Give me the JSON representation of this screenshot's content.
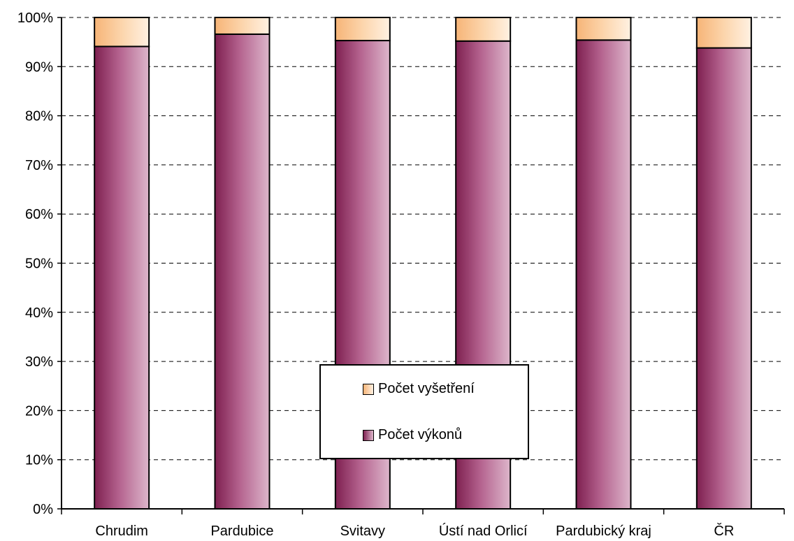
{
  "chart_data": {
    "type": "bar",
    "stacked": true,
    "normalized_percent": true,
    "categories": [
      "Chrudim",
      "Pardubice",
      "Svitavy",
      "Ústí nad Orlicí",
      "Pardubický kraj",
      "ČR"
    ],
    "series": [
      {
        "name": "Počet výkonů",
        "values": [
          94.1,
          96.6,
          95.3,
          95.2,
          95.4,
          93.8
        ],
        "color": "#9c3a6b"
      },
      {
        "name": "Počet vyšetření",
        "values": [
          5.9,
          3.4,
          4.7,
          4.8,
          4.6,
          6.2
        ],
        "color": "#fcd9b0"
      }
    ],
    "yticks": [
      "0%",
      "10%",
      "20%",
      "30%",
      "40%",
      "50%",
      "60%",
      "70%",
      "80%",
      "90%",
      "100%"
    ],
    "ylim": [
      0,
      100
    ],
    "grid": "horizontal dashed",
    "legend_position": "center-bottom"
  },
  "legend": {
    "items": [
      {
        "label": "Počet vyšetření",
        "color": "#fcd9b0"
      },
      {
        "label": "Počet výkonů",
        "color": "#9c3a6b"
      }
    ]
  }
}
